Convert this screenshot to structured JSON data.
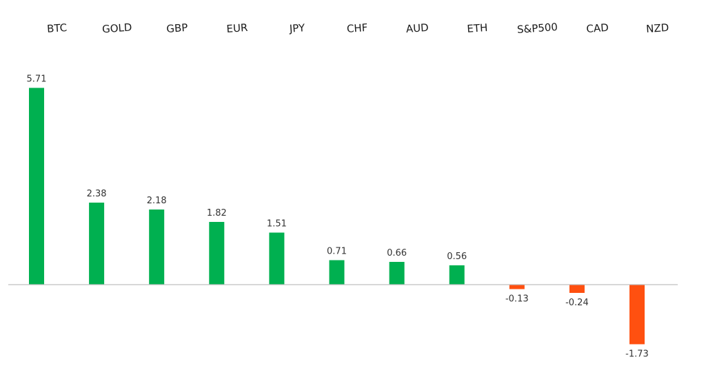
{
  "chart_data": {
    "type": "bar",
    "categories": [
      "BTC",
      "GOLD",
      "GBP",
      "EUR",
      "JPY",
      "CHF",
      "AUD",
      "ETH",
      "S&P500",
      "CAD",
      "NZD"
    ],
    "values": [
      5.71,
      2.38,
      2.18,
      1.82,
      1.51,
      0.71,
      0.66,
      0.56,
      -0.13,
      -0.24,
      -1.73
    ],
    "value_labels": [
      "5.71",
      "2.38",
      "2.18",
      "1.82",
      "1.51",
      "0.71",
      "0.66",
      "0.56",
      "-0.13",
      "-0.24",
      "-1.73"
    ],
    "title": "",
    "xlabel": "",
    "ylabel": "",
    "ylim": [
      -2,
      6
    ],
    "category_labels_position": "top",
    "grid": false,
    "legend": "none",
    "colors": {
      "positive": "#00b050",
      "negative": "#ff5010",
      "baseline": "#bfbfbf"
    }
  }
}
